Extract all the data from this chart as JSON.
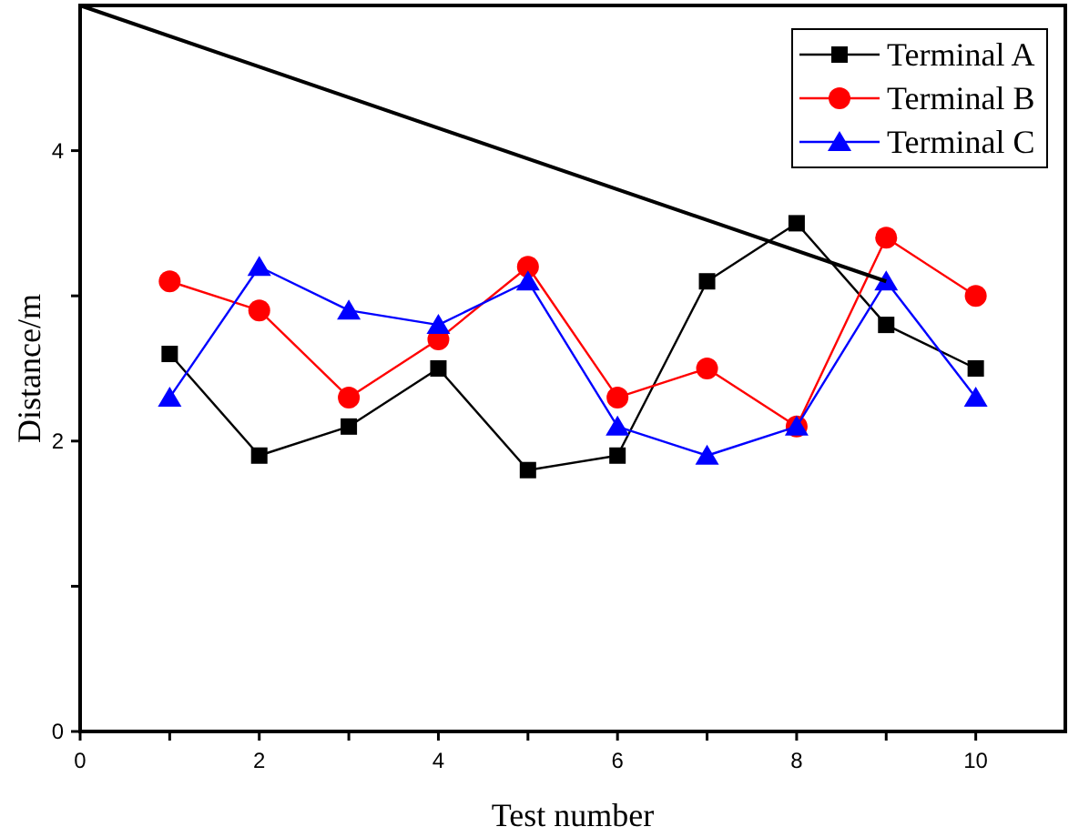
{
  "chart_data": {
    "type": "line",
    "xlabel": "Test number",
    "ylabel": "Distance/m",
    "xlim": [
      0,
      11
    ],
    "ylim": [
      0,
      5
    ],
    "xticks": [
      0,
      {
        "value": 1,
        "label": null
      },
      2,
      {
        "value": 3,
        "label": null
      },
      4,
      {
        "value": 5,
        "label": null
      },
      6,
      {
        "value": 7,
        "label": null
      },
      8,
      {
        "value": 9,
        "label": null
      },
      10
    ],
    "yticks": [
      0,
      {
        "value": 1,
        "label": null
      },
      2,
      {
        "value": 3,
        "label": null
      },
      4
    ],
    "x": [
      1,
      2,
      3,
      4,
      5,
      6,
      7,
      8,
      9,
      10
    ],
    "legend": "top right",
    "grid": false,
    "series": [
      {
        "name": "Terminal A",
        "color": "#000000",
        "marker": "square",
        "values": [
          2.6,
          1.9,
          2.1,
          2.5,
          1.8,
          1.9,
          3.1,
          3.5,
          2.8,
          2.5
        ]
      },
      {
        "name": "Terminal B",
        "color": "#ff0000",
        "marker": "circle",
        "values": [
          3.1,
          2.9,
          2.3,
          2.7,
          3.2,
          2.3,
          2.5,
          2.1,
          3.4,
          3.0
        ]
      },
      {
        "name": "Terminal C",
        "color": "#0000ff",
        "marker": "triangle",
        "values": [
          2.3,
          3.2,
          2.9,
          2.8,
          3.1,
          2.1,
          1.9,
          2.1,
          3.1,
          2.3
        ]
      },
      {
        "type": "line",
        "color": "#000000",
        "marker": "none",
        "x": [
          0,
          9
        ],
        "values": [
          5,
          3.1
        ]
      }
    ]
  }
}
